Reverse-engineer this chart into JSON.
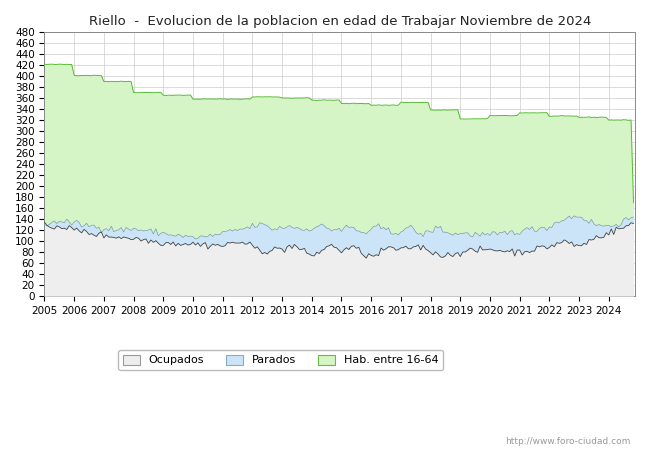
{
  "title": "Riello  -  Evolucion de la poblacion en edad de Trabajar Noviembre de 2024",
  "url_text": "http://www.foro-ciudad.com",
  "legend_labels": [
    "Ocupados",
    "Parados",
    "Hab. entre 16-64"
  ],
  "legend_colors": [
    "#eeeeee",
    "#cce4f7",
    "#d6f5c6"
  ],
  "legend_edge_colors": [
    "#999999",
    "#88aacc",
    "#66bb44"
  ],
  "ylim": [
    0,
    480
  ],
  "yticks": [
    0,
    20,
    40,
    60,
    80,
    100,
    120,
    140,
    160,
    180,
    200,
    220,
    240,
    260,
    280,
    300,
    320,
    340,
    360,
    380,
    400,
    420,
    440,
    460,
    480
  ],
  "xtick_years": [
    2005,
    2006,
    2007,
    2008,
    2009,
    2010,
    2011,
    2012,
    2013,
    2014,
    2015,
    2016,
    2017,
    2018,
    2019,
    2020,
    2021,
    2022,
    2023,
    2024
  ],
  "background_color": "#ffffff",
  "grid_color": "#cccccc",
  "hab_color_fill": "#d6f5c6",
  "hab_color_line": "#55bb33",
  "parados_color_fill": "#cce4f7",
  "parados_color_line": "#7799bb",
  "ocupados_color_fill": "#eeeeee",
  "ocupados_color_line": "#444444",
  "title_color": "#222222",
  "title_fontsize": 9.5,
  "axis_fontsize": 7.5
}
